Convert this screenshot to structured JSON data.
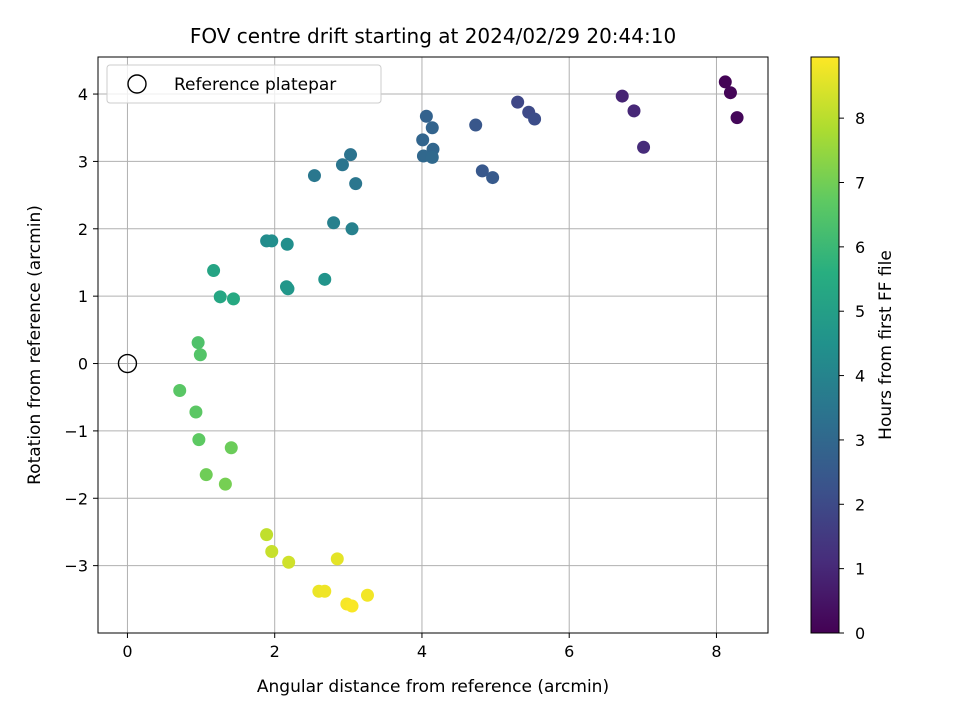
{
  "chart_data": {
    "type": "scatter",
    "title": "FOV centre drift starting at 2024/02/29 20:44:10",
    "xlabel": "Angular distance from reference (arcmin)",
    "ylabel": "Rotation from reference (arcmin)",
    "xlim": [
      -0.4,
      8.7
    ],
    "ylim": [
      -4.0,
      4.55
    ],
    "xticks": [
      0,
      2,
      4,
      6,
      8
    ],
    "yticks": [
      -3,
      -2,
      -1,
      0,
      1,
      2,
      3,
      4
    ],
    "grid": true,
    "legend": {
      "placement": "upper-left",
      "entries": [
        "Reference platepar"
      ]
    },
    "reference_point": {
      "name": "Reference platepar",
      "x": 0,
      "y": 0
    },
    "colorbar": {
      "label": "Hours from first FF file",
      "colormap": "viridis",
      "range": [
        0,
        8.95
      ],
      "ticks": [
        0,
        1,
        2,
        3,
        4,
        5,
        6,
        7,
        8
      ]
    },
    "series": [
      {
        "points": [
          {
            "x": 8.12,
            "y": 4.18,
            "t": 0.05
          },
          {
            "x": 8.19,
            "y": 4.02,
            "t": 0.1
          },
          {
            "x": 8.28,
            "y": 3.65,
            "t": 0.15
          },
          {
            "x": 6.72,
            "y": 3.97,
            "t": 0.9
          },
          {
            "x": 6.88,
            "y": 3.75,
            "t": 1.0
          },
          {
            "x": 7.01,
            "y": 3.21,
            "t": 1.1
          },
          {
            "x": 5.3,
            "y": 3.88,
            "t": 1.9
          },
          {
            "x": 5.45,
            "y": 3.73,
            "t": 2.0
          },
          {
            "x": 5.53,
            "y": 3.63,
            "t": 2.1
          },
          {
            "x": 4.73,
            "y": 3.54,
            "t": 2.4
          },
          {
            "x": 4.82,
            "y": 2.86,
            "t": 2.45
          },
          {
            "x": 4.96,
            "y": 2.76,
            "t": 2.5
          },
          {
            "x": 4.06,
            "y": 3.67,
            "t": 2.8
          },
          {
            "x": 4.14,
            "y": 3.5,
            "t": 2.85
          },
          {
            "x": 4.01,
            "y": 3.32,
            "t": 2.9
          },
          {
            "x": 4.15,
            "y": 3.18,
            "t": 2.95
          },
          {
            "x": 4.02,
            "y": 3.08,
            "t": 3.0
          },
          {
            "x": 4.14,
            "y": 3.06,
            "t": 3.05
          },
          {
            "x": 3.03,
            "y": 3.1,
            "t": 3.4
          },
          {
            "x": 2.92,
            "y": 2.95,
            "t": 3.45
          },
          {
            "x": 3.1,
            "y": 2.67,
            "t": 3.5
          },
          {
            "x": 2.54,
            "y": 2.79,
            "t": 3.55
          },
          {
            "x": 2.8,
            "y": 2.09,
            "t": 3.85
          },
          {
            "x": 3.05,
            "y": 2.0,
            "t": 3.9
          },
          {
            "x": 1.89,
            "y": 1.82,
            "t": 4.3
          },
          {
            "x": 1.96,
            "y": 1.82,
            "t": 4.35
          },
          {
            "x": 2.17,
            "y": 1.77,
            "t": 4.4
          },
          {
            "x": 2.68,
            "y": 1.25,
            "t": 4.6
          },
          {
            "x": 2.16,
            "y": 1.14,
            "t": 4.65
          },
          {
            "x": 2.18,
            "y": 1.11,
            "t": 4.7
          },
          {
            "x": 1.17,
            "y": 1.38,
            "t": 5.2
          },
          {
            "x": 1.26,
            "y": 0.99,
            "t": 5.3
          },
          {
            "x": 1.44,
            "y": 0.96,
            "t": 5.4
          },
          {
            "x": 0.96,
            "y": 0.31,
            "t": 6.4
          },
          {
            "x": 0.99,
            "y": 0.13,
            "t": 6.5
          },
          {
            "x": 0.71,
            "y": -0.4,
            "t": 6.6
          },
          {
            "x": 0.93,
            "y": -0.72,
            "t": 6.65
          },
          {
            "x": 0.97,
            "y": -1.13,
            "t": 6.7
          },
          {
            "x": 1.41,
            "y": -1.25,
            "t": 6.9
          },
          {
            "x": 1.07,
            "y": -1.65,
            "t": 6.95
          },
          {
            "x": 1.33,
            "y": -1.79,
            "t": 7.05
          },
          {
            "x": 1.89,
            "y": -2.54,
            "t": 8.1
          },
          {
            "x": 1.96,
            "y": -2.79,
            "t": 8.2
          },
          {
            "x": 2.19,
            "y": -2.95,
            "t": 8.3
          },
          {
            "x": 2.85,
            "y": -2.9,
            "t": 8.6
          },
          {
            "x": 2.6,
            "y": -3.38,
            "t": 8.7
          },
          {
            "x": 2.68,
            "y": -3.38,
            "t": 8.75
          },
          {
            "x": 3.26,
            "y": -3.44,
            "t": 8.8
          },
          {
            "x": 2.98,
            "y": -3.57,
            "t": 8.85
          },
          {
            "x": 3.05,
            "y": -3.6,
            "t": 8.9
          }
        ]
      }
    ]
  }
}
